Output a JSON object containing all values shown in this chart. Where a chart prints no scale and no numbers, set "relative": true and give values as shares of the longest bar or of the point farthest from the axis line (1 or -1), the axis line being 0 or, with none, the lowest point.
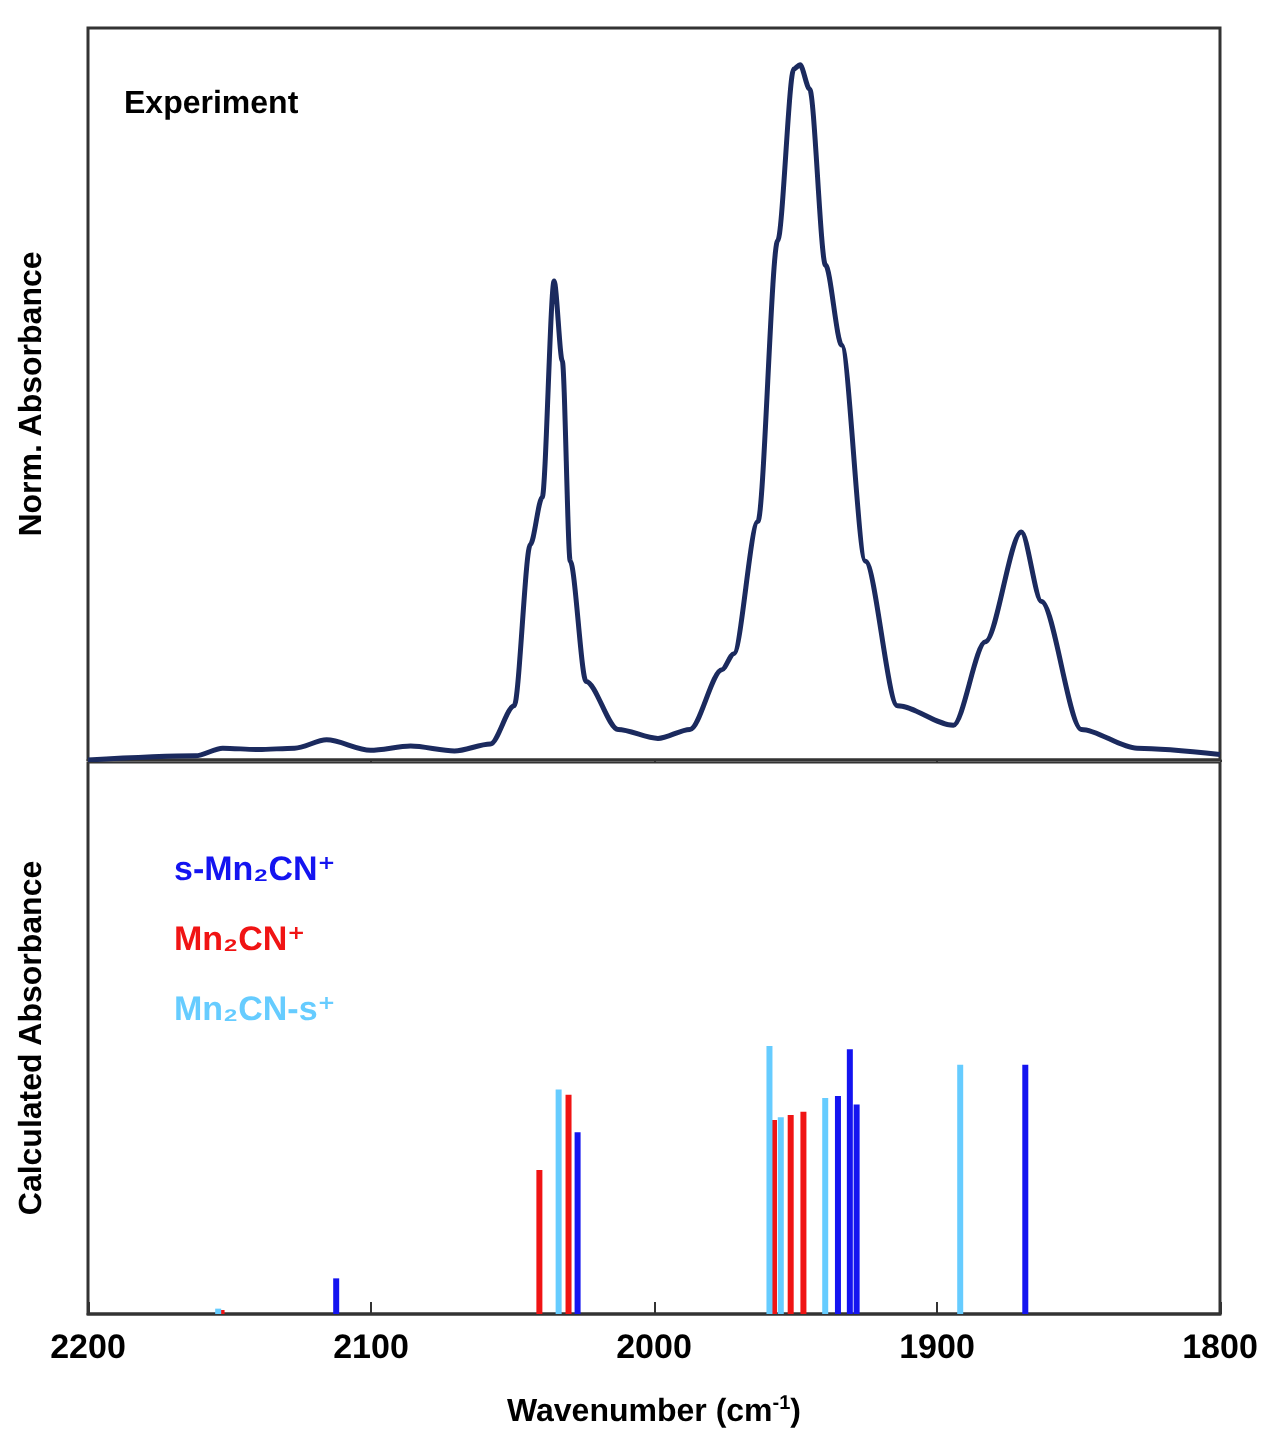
{
  "chart_data": [
    {
      "type": "line",
      "annotations": [
        "Experiment"
      ],
      "ylabel": "Norm. Absorbance",
      "relative": true,
      "xlim": [
        2200,
        1800
      ],
      "xticks": [
        2200,
        2100,
        2000,
        1900,
        1800
      ],
      "tick_labels": false,
      "legend": false,
      "grid": false,
      "series": [
        {
          "color": "#1b2a5e",
          "x": [
            2200,
            2162,
            2152.4,
            2139.7,
            2127,
            2115.7,
            2100.2,
            2086,
            2070.5,
            2057.8,
            2049.4,
            2043.7,
            2039.5,
            2035.3,
            2032.4,
            2029.6,
            2024,
            2012.7,
            1998.6,
            1987.3,
            1976,
            1971.8,
            1963.3,
            1956.3,
            1950.6,
            1948.4,
            1945,
            1939.4,
            1933.7,
            1925.3,
            1914,
            1894.2,
            1882.9,
            1870.2,
            1863.1,
            1849,
            1829.3,
            1800
          ],
          "values": [
            0,
            0.006,
            0.017,
            0.015,
            0.017,
            0.029,
            0.014,
            0.02,
            0.013,
            0.023,
            0.078,
            0.31,
            0.378,
            0.689,
            0.574,
            0.286,
            0.113,
            0.044,
            0.031,
            0.044,
            0.13,
            0.153,
            0.343,
            0.747,
            0.994,
            1,
            0.965,
            0.712,
            0.597,
            0.286,
            0.078,
            0.05,
            0.17,
            0.328,
            0.228,
            0.044,
            0.017,
            0.008
          ]
        }
      ]
    },
    {
      "type": "bar",
      "xlabel": "Wavenumber (cm$^{-1}$)",
      "ylabel": "Calculated Absorbance",
      "relative": true,
      "xlim": [
        2200,
        1800
      ],
      "xticks": [
        2200,
        2100,
        2000,
        1900,
        1800
      ],
      "tick_labels": "x",
      "legend": "top left",
      "grid": false,
      "series": [
        {
          "name": "s-Mn₂CN⁺",
          "color": "#1414f0",
          "x": [
            2112.3,
            2027,
            1935,
            1930.8,
            1928.4,
            1868.8
          ],
          "values": [
            0.133,
            0.678,
            0.814,
            0.988,
            0.782,
            0.93
          ]
        },
        {
          "name": "Mn₂CN⁺",
          "color": "#f01414",
          "x": [
            2152.8,
            2040.5,
            2030.2,
            1957.6,
            1951.7,
            1947.2
          ],
          "values": [
            0.015,
            0.537,
            0.818,
            0.724,
            0.743,
            0.755
          ]
        },
        {
          "name": "Mn₂CN-s⁺",
          "color": "#66ccff",
          "x": [
            2154,
            2033.7,
            1959.2,
            1955.2,
            1939.5,
            1891.8
          ],
          "values": [
            0.02,
            0.838,
            1,
            0.734,
            0.806,
            0.93
          ]
        }
      ]
    }
  ]
}
